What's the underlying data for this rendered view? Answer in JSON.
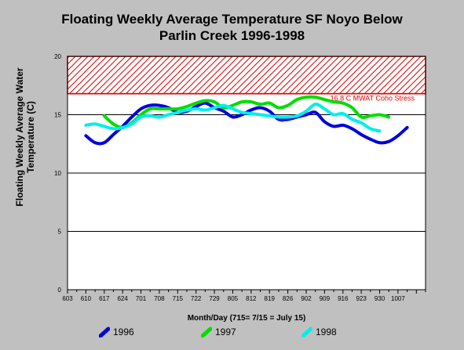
{
  "chart_data": {
    "type": "line",
    "title_line1": "Floating Weekly Average Temperature SF Noyo Below",
    "title_line2": "Parlin Creek 1996-1998",
    "ylabel_line1": "Floating Weekly Average Water",
    "ylabel_line2": "Temperature (C)",
    "xlabel": "Month/Day (715= 7/15 = July 15)",
    "ylim": [
      0,
      20
    ],
    "yticks": [
      "0",
      "5",
      "10",
      "15",
      "20"
    ],
    "ytick_values": [
      0,
      5,
      10,
      15,
      20
    ],
    "xticks": [
      "603",
      "610",
      "617",
      "624",
      "701",
      "708",
      "715",
      "722",
      "729",
      "805",
      "812",
      "819",
      "826",
      "902",
      "909",
      "916",
      "923",
      "930",
      "1007"
    ],
    "grid": "horizontal",
    "legend_position": "bottom",
    "threshold": {
      "label": "16.8 C MWAT Coho Stress",
      "value": 16.8,
      "color": "#dd0000"
    },
    "series": [
      {
        "name": "1996",
        "color": "#0000dd",
        "points": [
          [
            2,
            13.2
          ],
          [
            3,
            12.6
          ],
          [
            4,
            12.6
          ],
          [
            5,
            13.3
          ],
          [
            6,
            14.0
          ],
          [
            7,
            14.8
          ],
          [
            8,
            15.5
          ],
          [
            9,
            15.8
          ],
          [
            10,
            15.8
          ],
          [
            11,
            15.6
          ],
          [
            12,
            15.2
          ],
          [
            13,
            15.3
          ],
          [
            14,
            15.7
          ],
          [
            15,
            16.0
          ],
          [
            16,
            15.6
          ],
          [
            17,
            15.3
          ],
          [
            18,
            14.8
          ],
          [
            19,
            15.0
          ],
          [
            20,
            15.4
          ],
          [
            21,
            15.6
          ],
          [
            22,
            15.3
          ],
          [
            23,
            14.6
          ],
          [
            24,
            14.6
          ],
          [
            25,
            14.8
          ],
          [
            26,
            15.0
          ],
          [
            27,
            15.2
          ],
          [
            28,
            14.4
          ],
          [
            29,
            14.0
          ],
          [
            30,
            14.1
          ],
          [
            31,
            13.8
          ],
          [
            32,
            13.3
          ],
          [
            33,
            12.9
          ],
          [
            34,
            12.6
          ],
          [
            35,
            12.7
          ],
          [
            36,
            13.2
          ],
          [
            37,
            13.9
          ]
        ]
      },
      {
        "name": "1997",
        "color": "#00dd00",
        "points": [
          [
            4,
            14.9
          ],
          [
            5,
            14.2
          ],
          [
            6,
            13.9
          ],
          [
            7,
            14.3
          ],
          [
            8,
            15.0
          ],
          [
            9,
            15.5
          ],
          [
            10,
            15.5
          ],
          [
            11,
            15.5
          ],
          [
            12,
            15.5
          ],
          [
            13,
            15.7
          ],
          [
            14,
            16.0
          ],
          [
            15,
            16.2
          ],
          [
            16,
            16.1
          ],
          [
            17,
            15.6
          ],
          [
            18,
            15.8
          ],
          [
            19,
            16.1
          ],
          [
            20,
            16.1
          ],
          [
            21,
            15.9
          ],
          [
            22,
            16.0
          ],
          [
            23,
            15.6
          ],
          [
            24,
            15.8
          ],
          [
            25,
            16.3
          ],
          [
            26,
            16.5
          ],
          [
            27,
            16.5
          ],
          [
            28,
            16.3
          ],
          [
            29,
            16.1
          ],
          [
            30,
            16.0
          ],
          [
            31,
            15.6
          ],
          [
            32,
            14.8
          ],
          [
            33,
            14.9
          ],
          [
            34,
            15.0
          ],
          [
            35,
            14.8
          ]
        ]
      },
      {
        "name": "1998",
        "color": "#00eeee",
        "points": [
          [
            2,
            14.1
          ],
          [
            3,
            14.2
          ],
          [
            4,
            14.0
          ],
          [
            5,
            13.8
          ],
          [
            6,
            13.9
          ],
          [
            7,
            14.2
          ],
          [
            8,
            14.8
          ],
          [
            9,
            14.9
          ],
          [
            10,
            14.8
          ],
          [
            11,
            15.0
          ],
          [
            12,
            15.2
          ],
          [
            13,
            15.4
          ],
          [
            14,
            15.5
          ],
          [
            15,
            15.4
          ],
          [
            16,
            15.6
          ],
          [
            17,
            15.8
          ],
          [
            18,
            15.5
          ],
          [
            19,
            15.2
          ],
          [
            20,
            15.1
          ],
          [
            21,
            15.0
          ],
          [
            22,
            14.9
          ],
          [
            23,
            14.8
          ],
          [
            24,
            14.8
          ],
          [
            25,
            14.9
          ],
          [
            26,
            15.3
          ],
          [
            27,
            15.9
          ],
          [
            28,
            15.5
          ],
          [
            29,
            15.0
          ],
          [
            30,
            15.1
          ],
          [
            31,
            14.6
          ],
          [
            32,
            14.3
          ],
          [
            33,
            13.8
          ],
          [
            34,
            13.6
          ]
        ]
      }
    ]
  }
}
